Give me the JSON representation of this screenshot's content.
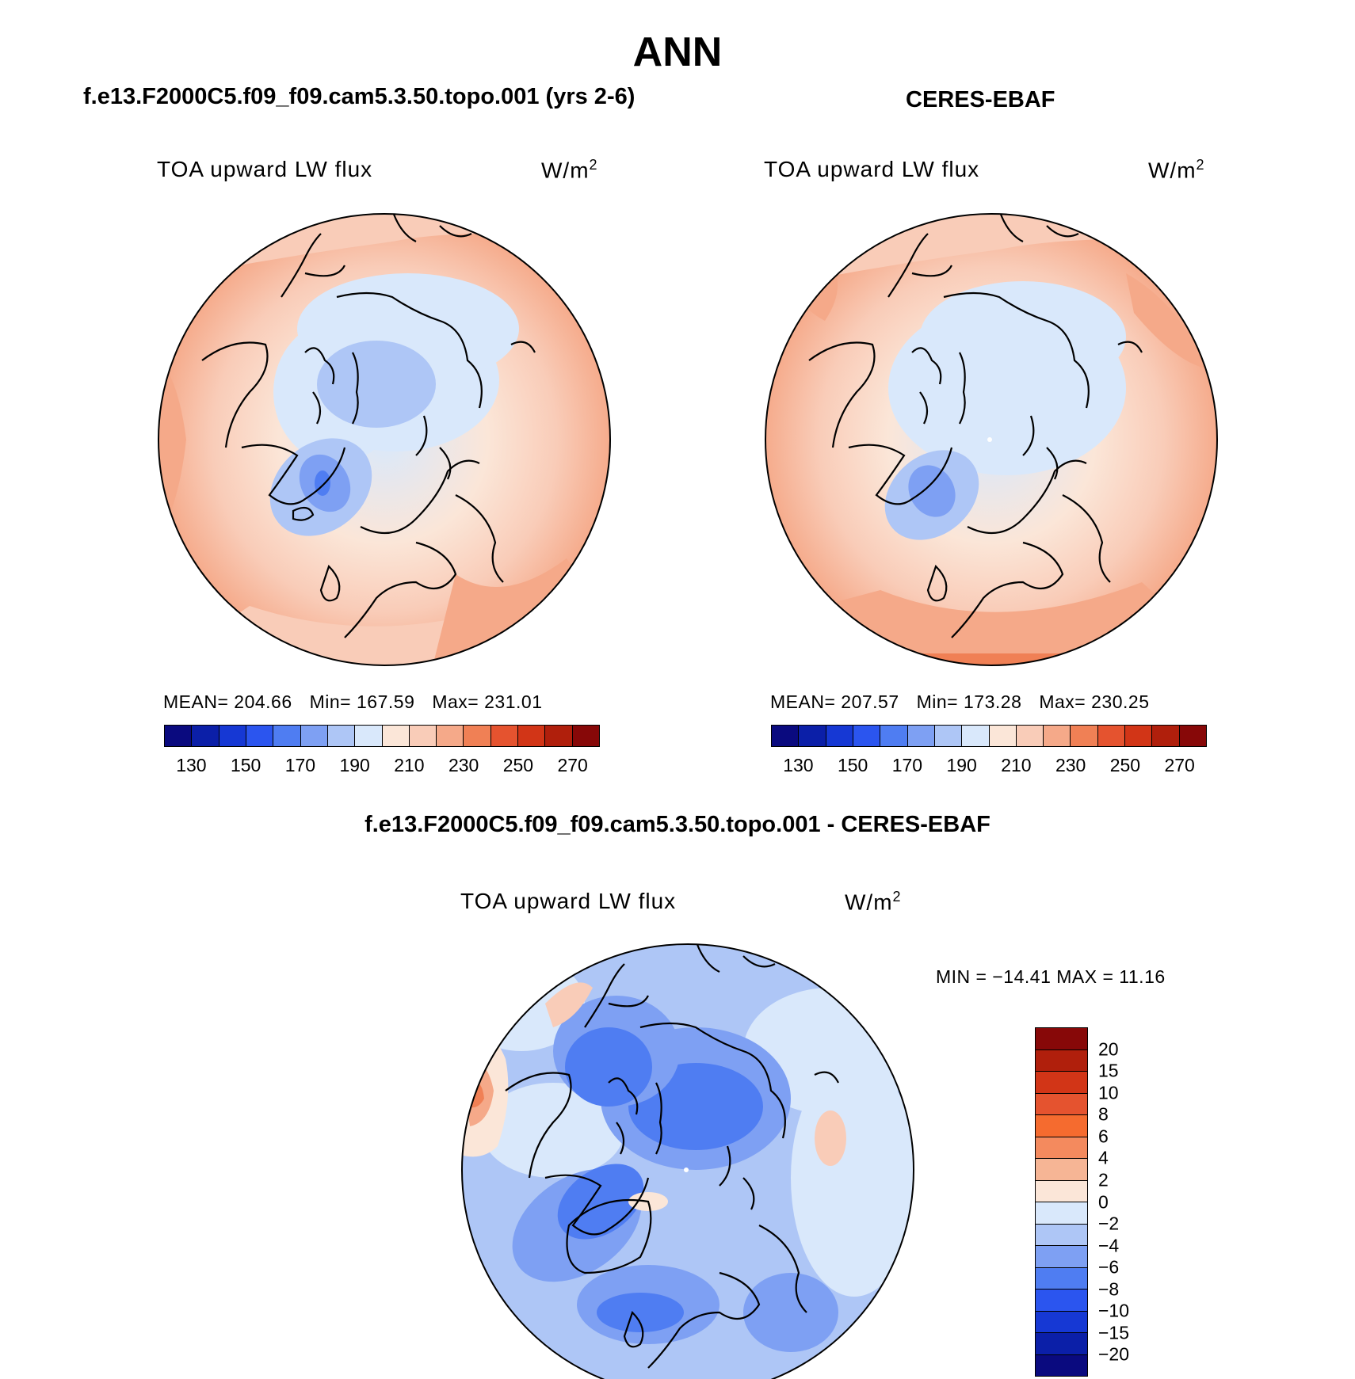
{
  "figure": {
    "main_title": "ANN",
    "model_title": "f.e13.F2000C5.f09_f09.cam5.3.50.topo.001 (yrs 2-6)",
    "obs_title": "CERES-EBAF",
    "diff_title": "f.e13.F2000C5.f09_f09.cam5.3.50.topo.001 - CERES-EBAF"
  },
  "panels": {
    "model": {
      "variable": "TOA upward LW flux",
      "units_base": "W/m",
      "units_exp": "2",
      "mean_text": "MEAN= 204.66",
      "min_text": "Min= 167.59",
      "max_text": "Max= 231.01"
    },
    "obs": {
      "variable": "TOA upward LW flux",
      "units_base": "W/m",
      "units_exp": "2",
      "mean_text": "MEAN= 207.57",
      "min_text": "Min= 173.28",
      "max_text": "Max= 230.25"
    },
    "diff": {
      "variable": "TOA upward LW flux",
      "units_base": "W/m",
      "units_exp": "2",
      "minmax_text": "MIN = −14.41 MAX =  11.16"
    }
  },
  "colorbars": {
    "absolute": {
      "colors": [
        "#0a0a7f",
        "#0b1fa8",
        "#1638d4",
        "#2b55ef",
        "#4f7df2",
        "#7ea0f3",
        "#aec6f6",
        "#d9e8fb",
        "#fbe6d8",
        "#f9ccb8",
        "#f5a989",
        "#f08055",
        "#e5532f",
        "#d23517",
        "#b01f0c",
        "#870808"
      ],
      "tick_labels": [
        "130",
        "150",
        "170",
        "190",
        "210",
        "230",
        "250",
        "270"
      ]
    },
    "difference": {
      "colors_top_to_bottom": [
        "#870808",
        "#b01f0c",
        "#d23517",
        "#e5532f",
        "#f56b2f",
        "#f48a5e",
        "#f6b595",
        "#fbe6d8",
        "#d9e8fb",
        "#aec6f6",
        "#7ea0f3",
        "#4f7df2",
        "#2b55ef",
        "#1638d4",
        "#0b1fa8",
        "#0a0a7f"
      ],
      "tick_labels": [
        "20",
        "15",
        "10",
        "8",
        "6",
        "4",
        "2",
        "0",
        "−2",
        "−4",
        "−6",
        "−8",
        "−10",
        "−15",
        "−20"
      ]
    }
  }
}
